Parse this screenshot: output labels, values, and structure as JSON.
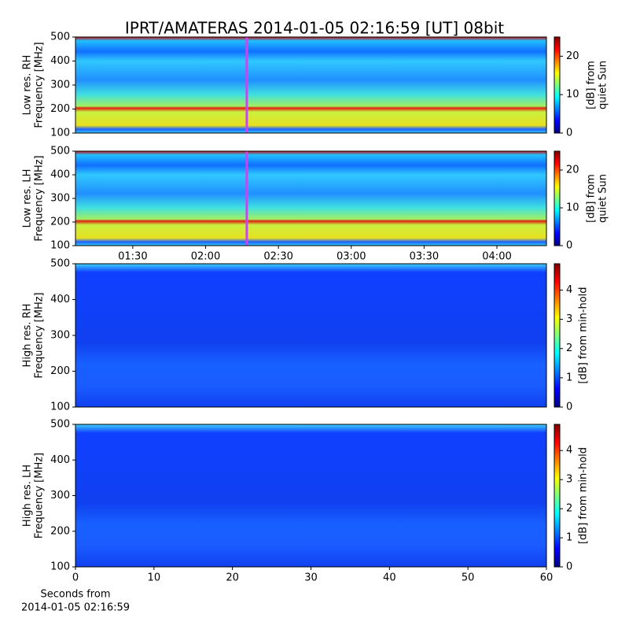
{
  "title": "IPRT/AMATERAS 2014-01-05 02:16:59 [UT]   08bit",
  "chart_data": [
    {
      "type": "heatmap",
      "colormap": "jet",
      "ylabel": [
        "Low res. RH",
        "Frequency [MHz]"
      ],
      "xlim": [
        66.4,
        260.4
      ],
      "ylim": [
        100,
        500
      ],
      "yticks": [
        100,
        200,
        300,
        400,
        500
      ],
      "marker": {
        "x": 136.98,
        "color": "#c846f0"
      },
      "colorbar": {
        "label": [
          "[dB] from",
          "quiet Sun"
        ],
        "lim": [
          0,
          25
        ],
        "ticks": [
          0,
          10,
          20
        ]
      }
    },
    {
      "type": "heatmap",
      "colormap": "jet",
      "ylabel": [
        "Low res. LH",
        "Frequency [MHz]"
      ],
      "xlim": [
        66.4,
        260.4
      ],
      "xticks": [
        {
          "value": 90,
          "label": "01:30"
        },
        {
          "value": 120,
          "label": "02:00"
        },
        {
          "value": 150,
          "label": "02:30"
        },
        {
          "value": 180,
          "label": "03:00"
        },
        {
          "value": 210,
          "label": "03:30"
        },
        {
          "value": 240,
          "label": "04:00"
        }
      ],
      "ylim": [
        100,
        500
      ],
      "yticks": [
        100,
        200,
        300,
        400,
        500
      ],
      "marker": {
        "x": 136.98,
        "color": "#c846f0"
      },
      "colorbar": {
        "label": [
          "[dB] from",
          "quiet Sun"
        ],
        "lim": [
          0,
          25
        ],
        "ticks": [
          0,
          10,
          20
        ]
      }
    },
    {
      "type": "heatmap",
      "colormap": "jet",
      "ylabel": [
        "High res. RH",
        "Frequency [MHz]"
      ],
      "xlim": [
        0,
        60
      ],
      "ylim": [
        100,
        500
      ],
      "yticks": [
        100,
        200,
        300,
        400,
        500
      ],
      "colorbar": {
        "label": [
          "[dB] from min-hold"
        ],
        "lim": [
          0,
          4.9
        ],
        "ticks": [
          0,
          1,
          2,
          3,
          4
        ]
      }
    },
    {
      "type": "heatmap",
      "colormap": "jet",
      "ylabel": [
        "High res. LH",
        "Frequency [MHz]"
      ],
      "xlim": [
        0,
        60
      ],
      "xticks": [
        0,
        10,
        20,
        30,
        40,
        50,
        60
      ],
      "xlabel": [
        "Seconds from",
        "2014-01-05 02:16:59"
      ],
      "ylim": [
        100,
        500
      ],
      "yticks": [
        100,
        200,
        300,
        400,
        500
      ],
      "colorbar": {
        "label": [
          "[dB] from min-hold"
        ],
        "lim": [
          0,
          4.9
        ],
        "ticks": [
          0,
          1,
          2,
          3,
          4
        ]
      }
    }
  ]
}
